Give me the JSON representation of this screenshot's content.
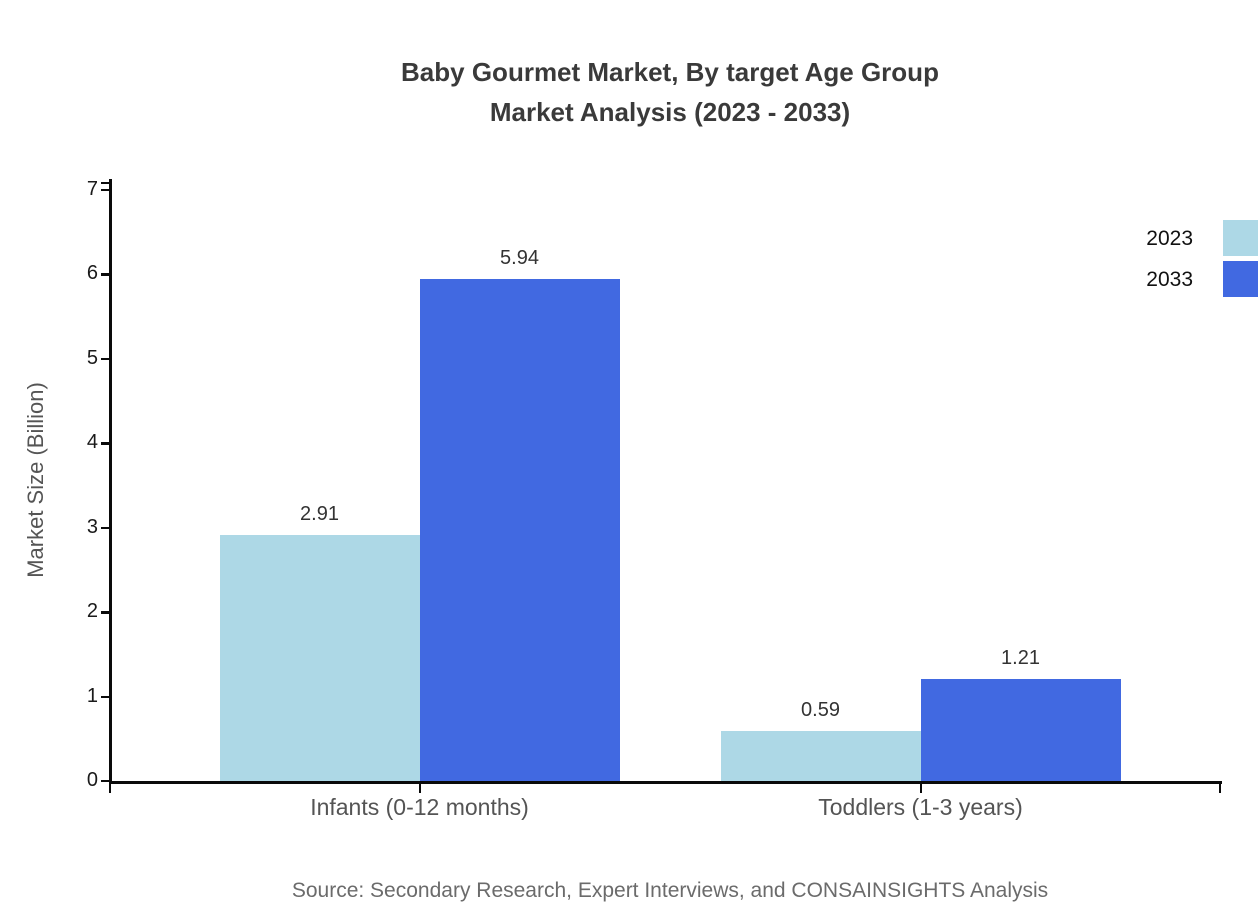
{
  "title": {
    "line1": "Baby Gourmet Market, By target Age Group",
    "line2": "Market Analysis (2023 - 2033)"
  },
  "chart_data": {
    "type": "bar",
    "categories": [
      "Infants (0-12 months)",
      "Toddlers (1-3 years)"
    ],
    "series": [
      {
        "name": "2023",
        "color": "#add8e6",
        "values": [
          2.91,
          0.59
        ]
      },
      {
        "name": "2033",
        "color": "#4169e1",
        "values": [
          5.94,
          1.21
        ]
      }
    ],
    "ylabel": "Market Size (Billion)",
    "ylim": [
      0,
      7
    ],
    "ytick_step": 1,
    "grid": false,
    "legend_position": "top-right",
    "value_label_decimals": 2
  },
  "source": "Source: Secondary Research, Expert Interviews, and CONSAINSIGHTS Analysis"
}
